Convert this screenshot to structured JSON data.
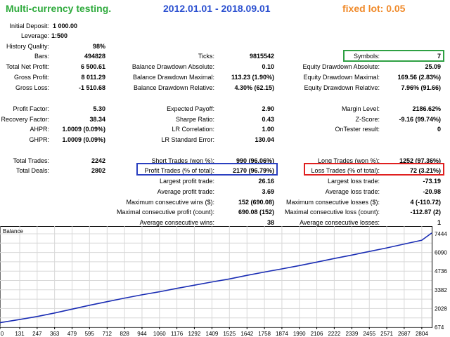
{
  "header": {
    "title": "Multi-currency testing.",
    "dates": "2012.01.01 - 2018.09.01",
    "lot": "fixed lot: 0.05",
    "title_color": "#2eaa3c",
    "dates_color": "#2a4fd0",
    "lot_color": "#f08a2a"
  },
  "stats": {
    "initial_deposit": {
      "label": "Initial Deposit:",
      "value": "1 000.00"
    },
    "leverage": {
      "label": "Leverage:",
      "value": "1:500"
    },
    "history_quality": {
      "label": "History Quality:",
      "value": "98%"
    },
    "bars": {
      "label": "Bars:",
      "value": "494828"
    },
    "ticks": {
      "label": "Ticks:",
      "value": "9815542"
    },
    "symbols": {
      "label": "Symbols:",
      "value": "7"
    },
    "total_net_profit": {
      "label": "Total Net Profit:",
      "value": "6 500.61"
    },
    "balance_dd_abs": {
      "label": "Balance Drawdown Absolute:",
      "value": "0.10"
    },
    "equity_dd_abs": {
      "label": "Equity Drawdown Absolute:",
      "value": "25.09"
    },
    "gross_profit": {
      "label": "Gross Profit:",
      "value": "8 011.29"
    },
    "balance_dd_max": {
      "label": "Balance Drawdown Maximal:",
      "value": "113.23 (1.90%)"
    },
    "equity_dd_max": {
      "label": "Equity Drawdown Maximal:",
      "value": "169.56 (2.83%)"
    },
    "gross_loss": {
      "label": "Gross Loss:",
      "value": "-1 510.68"
    },
    "balance_dd_rel": {
      "label": "Balance Drawdown Relative:",
      "value": "4.30% (62.15)"
    },
    "equity_dd_rel": {
      "label": "Equity Drawdown Relative:",
      "value": "7.96% (91.66)"
    },
    "profit_factor": {
      "label": "Profit Factor:",
      "value": "5.30"
    },
    "expected_payoff": {
      "label": "Expected Payoff:",
      "value": "2.90"
    },
    "margin_level": {
      "label": "Margin Level:",
      "value": "2186.62%"
    },
    "recovery_factor": {
      "label": "Recovery Factor:",
      "value": "38.34"
    },
    "sharpe_ratio": {
      "label": "Sharpe Ratio:",
      "value": "0.43"
    },
    "z_score": {
      "label": "Z-Score:",
      "value": "-9.16 (99.74%)"
    },
    "ahpr": {
      "label": "AHPR:",
      "value": "1.0009 (0.09%)"
    },
    "lr_correlation": {
      "label": "LR Correlation:",
      "value": "1.00"
    },
    "ontester_result": {
      "label": "OnTester result:",
      "value": "0"
    },
    "ghpr": {
      "label": "GHPR:",
      "value": "1.0009 (0.09%)"
    },
    "lr_std_error": {
      "label": "LR Standard Error:",
      "value": "130.04"
    },
    "total_trades": {
      "label": "Total Trades:",
      "value": "2242"
    },
    "short_trades": {
      "label": "Short Trades (won %):",
      "value": "990 (96.06%)"
    },
    "long_trades": {
      "label": "Long Trades (won %):",
      "value": "1252 (97.36%)"
    },
    "total_deals": {
      "label": "Total Deals:",
      "value": "2802"
    },
    "profit_trades": {
      "label": "Profit Trades (% of total):",
      "value": "2170 (96.79%)"
    },
    "loss_trades": {
      "label": "Loss Trades (% of total):",
      "value": "72 (3.21%)"
    },
    "largest_profit": {
      "label": "Largest profit trade:",
      "value": "26.16"
    },
    "largest_loss": {
      "label": "Largest loss trade:",
      "value": "-73.19"
    },
    "avg_profit": {
      "label": "Average profit trade:",
      "value": "3.69"
    },
    "avg_loss": {
      "label": "Average loss trade:",
      "value": "-20.98"
    },
    "max_consec_wins": {
      "label": "Maximum consecutive wins ($):",
      "value": "152 (690.08)"
    },
    "max_consec_losses": {
      "label": "Maximum consecutive losses ($):",
      "value": "4 (-110.72)"
    },
    "maximal_consec_profit": {
      "label": "Maximal consecutive profit (count):",
      "value": "690.08 (152)"
    },
    "maximal_consec_loss": {
      "label": "Maximal consecutive loss (count):",
      "value": "-112.87 (2)"
    },
    "avg_consec_wins": {
      "label": "Average consecutive wins:",
      "value": "38"
    },
    "avg_consec_losses": {
      "label": "Average consecutive losses:",
      "value": "1"
    }
  },
  "highlights": {
    "symbols_color": "#2ea043",
    "profit_trades_color": "#2a3fc0",
    "loss_trades_color": "#e02020"
  },
  "chart_data": {
    "type": "line",
    "title": "Balance",
    "series": [
      {
        "x": [
          0,
          131,
          247,
          363,
          479,
          595,
          712,
          828,
          944,
          1060,
          1176,
          1292,
          1409,
          1525,
          1642,
          1758,
          1874,
          1990,
          2106,
          2222,
          2339,
          2455,
          2571,
          2687,
          2804,
          2870
        ],
        "values": [
          1000,
          1230,
          1450,
          1700,
          1980,
          2260,
          2520,
          2780,
          3020,
          3240,
          3490,
          3720,
          3950,
          4170,
          4430,
          4670,
          4900,
          5140,
          5390,
          5650,
          5900,
          6160,
          6420,
          6700,
          6980,
          7500
        ]
      }
    ],
    "x_ticks": [
      "0",
      "131",
      "247",
      "363",
      "479",
      "595",
      "712",
      "828",
      "944",
      "1060",
      "1176",
      "1292",
      "1409",
      "1525",
      "1642",
      "1758",
      "1874",
      "1990",
      "2106",
      "2222",
      "2339",
      "2455",
      "2571",
      "2687",
      "2804"
    ],
    "y_ticks": [
      "7444",
      "6090",
      "4736",
      "3382",
      "2028",
      "674"
    ],
    "xlim": [
      0,
      2870
    ],
    "ylim": [
      674,
      7800
    ],
    "grid": true,
    "line_color": "#1a2db4",
    "grid_color": "#d8d8d8"
  }
}
